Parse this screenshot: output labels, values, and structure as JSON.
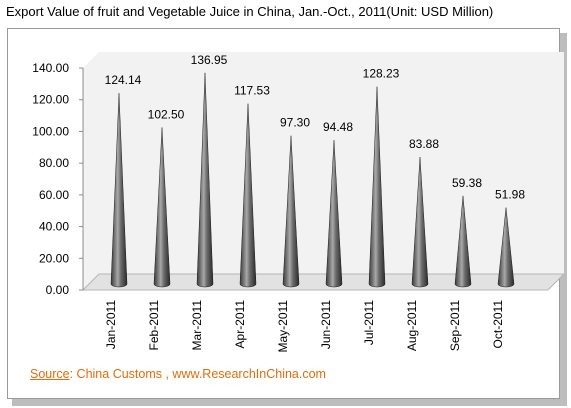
{
  "title": "Export Value of fruit and Vegetable  Juice in China, Jan.-Oct.,  2011(Unit:  USD Million)",
  "source": {
    "label": "Source",
    "text": ": China Customs , www.ResearchInChina.com"
  },
  "colors": {
    "cone_dark": "#2f2f2f",
    "cone_light": "#9a9a9a",
    "floor": "#e2e2e2",
    "wall": "#f2f2f2",
    "source_text": "#e46c0a"
  },
  "chart_data": {
    "type": "bar",
    "shape": "cone",
    "title": "Export Value of fruit and Vegetable  Juice in China, Jan.-Oct.,  2011(Unit:  USD Million)",
    "categories": [
      "Jan-2011",
      "Feb-2011",
      "Mar-2011",
      "Apr-2011",
      "May-2011",
      "Jun-2011",
      "Jul-2011",
      "Aug-2011",
      "Sep-2011",
      "Oct-2011"
    ],
    "values": [
      124.14,
      102.5,
      136.95,
      117.53,
      97.3,
      94.48,
      128.23,
      83.88,
      59.38,
      51.98
    ],
    "value_labels": [
      "124.14",
      "102.50",
      "136.95",
      "117.53",
      "97.30",
      "94.48",
      "128.23",
      "83.88",
      "59.38",
      "51.98"
    ],
    "yticks": [
      "0.00",
      "20.00",
      "40.00",
      "60.00",
      "80.00",
      "100.00",
      "120.00",
      "140.00"
    ],
    "ylim": [
      0,
      140
    ],
    "xlabel": "",
    "ylabel": "",
    "grid": false,
    "legend": "none"
  }
}
